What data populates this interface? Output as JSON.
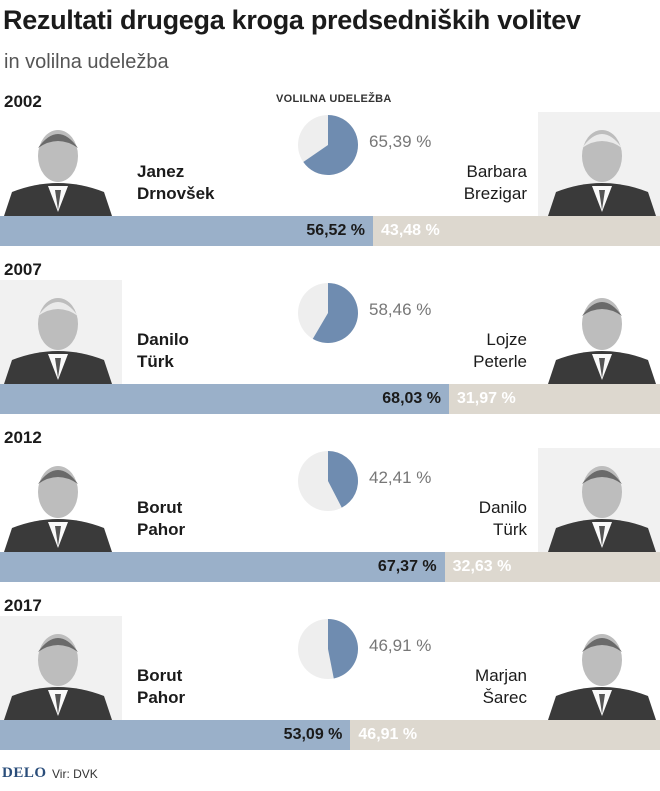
{
  "title": "Rezultati drugega kroga predsedniških volitev",
  "subtitle": "in volilna udeležba",
  "turnout_header": "VOLILNA UDELEŽBA",
  "colors": {
    "winner_bar": "#9ab0c9",
    "loser_bar": "#ddd8cf",
    "pie_turnout": "#6f8cb0",
    "pie_rest": "#eeeeee"
  },
  "chart_data": [
    {
      "type": "bar",
      "year": "2002",
      "candidates": [
        {
          "name_line1": "Janez",
          "name_line2": "Drnovšek",
          "value": 56.52,
          "label": "56,52 %"
        },
        {
          "name_line1": "Barbara",
          "name_line2": "Brezigar",
          "value": 43.48,
          "label": "43,48 %"
        }
      ],
      "turnout": {
        "value": 65.39,
        "label": "65,39 %"
      }
    },
    {
      "type": "bar",
      "year": "2007",
      "candidates": [
        {
          "name_line1": "Danilo",
          "name_line2": "Türk",
          "value": 68.03,
          "label": "68,03 %"
        },
        {
          "name_line1": "Lojze",
          "name_line2": "Peterle",
          "value": 31.97,
          "label": "31,97 %"
        }
      ],
      "turnout": {
        "value": 58.46,
        "label": "58,46 %"
      }
    },
    {
      "type": "bar",
      "year": "2012",
      "candidates": [
        {
          "name_line1": "Borut",
          "name_line2": "Pahor",
          "value": 67.37,
          "label": "67,37 %"
        },
        {
          "name_line1": "Danilo",
          "name_line2": "Türk",
          "value": 32.63,
          "label": "32,63 %"
        }
      ],
      "turnout": {
        "value": 42.41,
        "label": "42,41 %"
      }
    },
    {
      "type": "bar",
      "year": "2017",
      "candidates": [
        {
          "name_line1": "Borut",
          "name_line2": "Pahor",
          "value": 53.09,
          "label": "53,09 %"
        },
        {
          "name_line1": "Marjan",
          "name_line2": "Šarec",
          "value": 46.91,
          "label": "46,91 %"
        }
      ],
      "turnout": {
        "value": 46.91,
        "label": "46,91 %"
      }
    }
  ],
  "footer": {
    "logo": "DELO",
    "source": "Vir: DVK"
  }
}
